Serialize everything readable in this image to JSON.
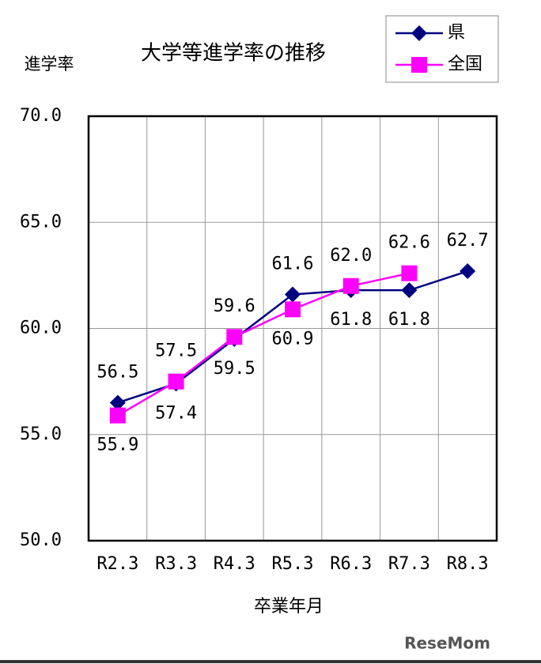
{
  "chart_data": {
    "type": "line",
    "title": "大学等進学率の推移",
    "y_label": "進学率",
    "x_label": "卒業年月",
    "categories": [
      "R2.3",
      "R3.3",
      "R4.3",
      "R5.3",
      "R6.3",
      "R7.3",
      "R8.3"
    ],
    "series": [
      {
        "name": "県",
        "color": "#000080",
        "marker": "diamond",
        "values": [
          56.5,
          57.4,
          59.5,
          61.6,
          61.8,
          61.8,
          62.7
        ],
        "value_labels": [
          "56.5",
          "57.4",
          "59.5",
          "61.6",
          "61.8",
          "61.8",
          "62.7"
        ]
      },
      {
        "name": "全国",
        "color": "#ff00ff",
        "marker": "square",
        "values": [
          55.9,
          57.5,
          59.6,
          60.9,
          62.0,
          62.6,
          null
        ],
        "value_labels": [
          "55.9",
          "57.5",
          "59.6",
          "60.9",
          "62.0",
          "62.6",
          null
        ]
      }
    ],
    "ylim": [
      50,
      70
    ],
    "yticks": [
      {
        "value": 50,
        "label": "50.0"
      },
      {
        "value": 55,
        "label": "55.0"
      },
      {
        "value": 60,
        "label": "60.0"
      },
      {
        "value": 65,
        "label": "65.0"
      },
      {
        "value": 70,
        "label": "70.0"
      }
    ],
    "grid": true,
    "legend": "top-right",
    "watermark": "ReseMom"
  }
}
